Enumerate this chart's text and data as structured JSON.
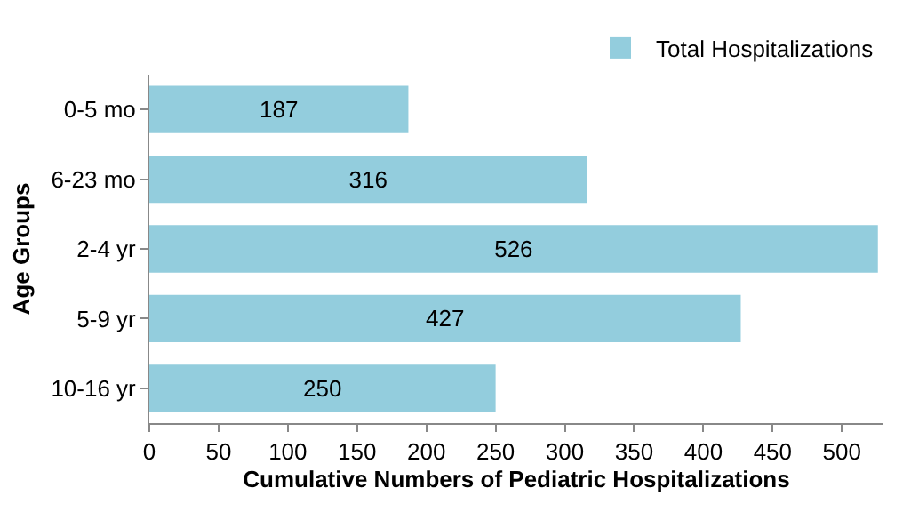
{
  "chart_data": {
    "type": "bar",
    "orientation": "horizontal",
    "xlabel": "Cumulative Numbers of Pediatric Hospitalizations",
    "ylabel": "Age Groups",
    "categories": [
      "0-5 mo",
      "6-23 mo",
      "2-4 yr",
      "5-9 yr",
      "10-16 yr"
    ],
    "series": [
      {
        "name": "Total Hospitalizations",
        "color": "#93cddd",
        "values": [
          187,
          316,
          526,
          427,
          250
        ]
      }
    ],
    "xlim": [
      0,
      530
    ],
    "xticks": [
      0,
      50,
      100,
      150,
      200,
      250,
      300,
      350,
      400,
      450,
      500
    ],
    "data_labels": true,
    "grid": false,
    "legend": "top right"
  }
}
